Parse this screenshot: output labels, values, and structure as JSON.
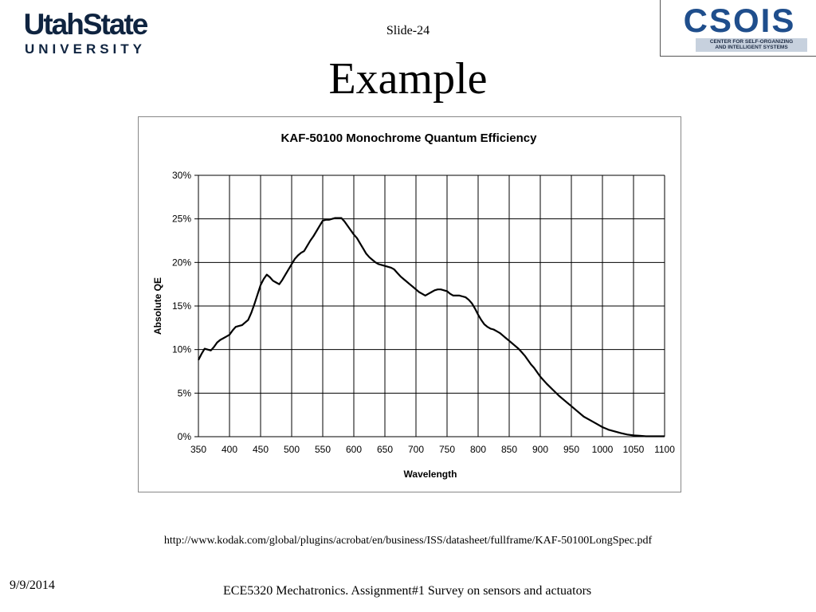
{
  "header": {
    "usu_logo_line1": "UtahState",
    "usu_logo_line2": "UNIVERSITY",
    "slide_number": "Slide-24",
    "title": "Example",
    "csois_logo_text": "CSOIS",
    "csois_logo_sub1": "CENTER FOR SELF-ORGANIZING",
    "csois_logo_sub2": "AND INTELLIGENT SYSTEMS"
  },
  "chart_data": {
    "type": "line",
    "title": "KAF-50100 Monochrome Quantum Efficiency",
    "xlabel": "Wavelength",
    "ylabel": "Absolute QE",
    "xlim": [
      350,
      1100
    ],
    "ylim": [
      0,
      30
    ],
    "x_ticks": [
      "350",
      "400",
      "450",
      "500",
      "550",
      "600",
      "650",
      "700",
      "750",
      "800",
      "850",
      "900",
      "950",
      "1000",
      "1050",
      "1100"
    ],
    "y_ticks": [
      "0%",
      "5%",
      "10%",
      "15%",
      "20%",
      "25%",
      "30%"
    ],
    "grid": true,
    "legend": "none",
    "line_color": "#000000",
    "series": [
      {
        "x": [
          350,
          355,
          360,
          365,
          370,
          375,
          380,
          385,
          390,
          395,
          400,
          405,
          410,
          415,
          420,
          425,
          430,
          435,
          440,
          445,
          450,
          455,
          460,
          465,
          470,
          475,
          480,
          485,
          490,
          495,
          500,
          505,
          510,
          515,
          520,
          525,
          530,
          535,
          540,
          545,
          550,
          555,
          560,
          565,
          570,
          575,
          580,
          585,
          590,
          595,
          600,
          605,
          610,
          615,
          620,
          625,
          630,
          635,
          640,
          645,
          650,
          655,
          660,
          665,
          670,
          675,
          680,
          685,
          690,
          695,
          700,
          705,
          710,
          715,
          720,
          725,
          730,
          735,
          740,
          745,
          750,
          755,
          760,
          765,
          770,
          775,
          780,
          785,
          790,
          795,
          800,
          805,
          810,
          815,
          820,
          825,
          830,
          835,
          840,
          845,
          850,
          855,
          860,
          865,
          870,
          875,
          880,
          885,
          890,
          895,
          900,
          910,
          920,
          930,
          940,
          950,
          960,
          970,
          980,
          990,
          1000,
          1010,
          1020,
          1030,
          1040,
          1050,
          1060,
          1070,
          1080,
          1090,
          1100
        ],
        "values": [
          8.8,
          9.5,
          10.1,
          10.0,
          9.9,
          10.3,
          10.8,
          11.1,
          11.3,
          11.5,
          11.7,
          12.2,
          12.6,
          12.7,
          12.8,
          13.1,
          13.4,
          14.2,
          15.2,
          16.3,
          17.4,
          18.1,
          18.6,
          18.3,
          17.9,
          17.7,
          17.5,
          18.0,
          18.6,
          19.2,
          19.8,
          20.4,
          20.8,
          21.1,
          21.3,
          21.9,
          22.5,
          23.0,
          23.6,
          24.2,
          24.8,
          24.9,
          24.9,
          25.0,
          25.1,
          25.1,
          25.1,
          24.7,
          24.2,
          23.7,
          23.2,
          22.8,
          22.2,
          21.6,
          21.0,
          20.6,
          20.3,
          20.0,
          19.8,
          19.7,
          19.6,
          19.5,
          19.4,
          19.2,
          18.8,
          18.4,
          18.1,
          17.8,
          17.5,
          17.2,
          16.9,
          16.6,
          16.4,
          16.2,
          16.4,
          16.6,
          16.8,
          16.9,
          16.9,
          16.8,
          16.7,
          16.4,
          16.2,
          16.2,
          16.2,
          16.1,
          16.0,
          15.7,
          15.3,
          14.7,
          14.0,
          13.4,
          12.9,
          12.6,
          12.4,
          12.3,
          12.1,
          11.9,
          11.6,
          11.3,
          11.0,
          10.7,
          10.4,
          10.1,
          9.7,
          9.3,
          8.8,
          8.3,
          7.9,
          7.4,
          6.9,
          6.1,
          5.4,
          4.7,
          4.1,
          3.5,
          2.9,
          2.3,
          1.9,
          1.5,
          1.1,
          0.8,
          0.6,
          0.4,
          0.25,
          0.15,
          0.1,
          0.05,
          0.05,
          0.05,
          0.05
        ]
      }
    ]
  },
  "source_url": "http://www.kodak.com/global/plugins/acrobat/en/business/ISS/datasheet/fullframe/KAF-50100LongSpec.pdf",
  "footer": {
    "date": "9/9/2014",
    "text": "ECE5320 Mechatronics. Assignment#1 Survey on sensors and actuators"
  }
}
